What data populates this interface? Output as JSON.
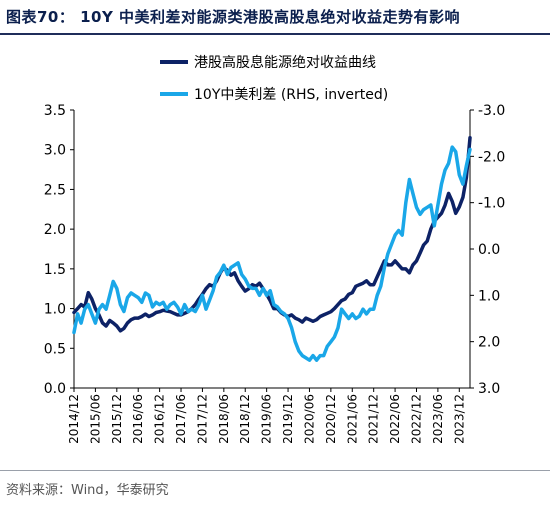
{
  "header": {
    "title": "图表70： 10Y 中美利差对能源类港股高股息绝对收益走势有影响"
  },
  "footer": {
    "source": "资料来源：Wind，华泰研究"
  },
  "colors": {
    "series1": "#0d2266",
    "series2": "#1aa7e8",
    "axis": "#000000"
  },
  "chart_data": {
    "type": "line",
    "title": "",
    "legend_position": "top-center",
    "grid": false,
    "x_axis": {
      "type": "date",
      "range": [
        "2014-12",
        "2024-03"
      ],
      "tick_labels": [
        "2014/12",
        "2015/06",
        "2015/12",
        "2016/06",
        "2016/12",
        "2017/06",
        "2017/12",
        "2018/06",
        "2018/12",
        "2019/06",
        "2019/12",
        "2020/06",
        "2020/12",
        "2021/06",
        "2021/12",
        "2022/06",
        "2022/12",
        "2023/06",
        "2023/12"
      ]
    },
    "y_left": {
      "ylim": [
        0,
        3.5
      ],
      "ticks": [
        "0.0",
        "0.5",
        "1.0",
        "1.5",
        "2.0",
        "2.5",
        "3.0",
        "3.5"
      ]
    },
    "y_right": {
      "label": "RHS, inverted",
      "inverted": true,
      "ylim": [
        -3.0,
        3.0
      ],
      "ticks": [
        "-3.0",
        "-2.0",
        "-1.0",
        "0.0",
        "1.0",
        "2.0",
        "3.0"
      ]
    },
    "series": [
      {
        "name": "港股高股息能源绝对收益曲线",
        "axis": "left",
        "color": "#0d2266",
        "points": [
          [
            "2014-12",
            0.95
          ],
          [
            "2015-01",
            1.0
          ],
          [
            "2015-02",
            1.05
          ],
          [
            "2015-03",
            1.02
          ],
          [
            "2015-04",
            1.2
          ],
          [
            "2015-05",
            1.12
          ],
          [
            "2015-06",
            1.0
          ],
          [
            "2015-07",
            0.92
          ],
          [
            "2015-08",
            0.82
          ],
          [
            "2015-09",
            0.78
          ],
          [
            "2015-10",
            0.85
          ],
          [
            "2015-11",
            0.82
          ],
          [
            "2015-12",
            0.78
          ],
          [
            "2016-01",
            0.72
          ],
          [
            "2016-02",
            0.75
          ],
          [
            "2016-03",
            0.82
          ],
          [
            "2016-04",
            0.86
          ],
          [
            "2016-05",
            0.88
          ],
          [
            "2016-06",
            0.88
          ],
          [
            "2016-07",
            0.9
          ],
          [
            "2016-08",
            0.93
          ],
          [
            "2016-09",
            0.9
          ],
          [
            "2016-10",
            0.92
          ],
          [
            "2016-11",
            0.95
          ],
          [
            "2016-12",
            0.96
          ],
          [
            "2017-01",
            0.98
          ],
          [
            "2017-02",
            0.97
          ],
          [
            "2017-03",
            0.96
          ],
          [
            "2017-04",
            0.94
          ],
          [
            "2017-05",
            0.92
          ],
          [
            "2017-06",
            0.92
          ],
          [
            "2017-07",
            0.94
          ],
          [
            "2017-08",
            0.96
          ],
          [
            "2017-09",
            1.0
          ],
          [
            "2017-10",
            1.05
          ],
          [
            "2017-11",
            1.12
          ],
          [
            "2017-12",
            1.18
          ],
          [
            "2018-01",
            1.25
          ],
          [
            "2018-02",
            1.3
          ],
          [
            "2018-03",
            1.28
          ],
          [
            "2018-04",
            1.35
          ],
          [
            "2018-05",
            1.45
          ],
          [
            "2018-06",
            1.52
          ],
          [
            "2018-07",
            1.48
          ],
          [
            "2018-08",
            1.42
          ],
          [
            "2018-09",
            1.45
          ],
          [
            "2018-10",
            1.35
          ],
          [
            "2018-11",
            1.28
          ],
          [
            "2018-12",
            1.22
          ],
          [
            "2019-01",
            1.25
          ],
          [
            "2019-02",
            1.3
          ],
          [
            "2019-03",
            1.28
          ],
          [
            "2019-04",
            1.32
          ],
          [
            "2019-05",
            1.25
          ],
          [
            "2019-06",
            1.18
          ],
          [
            "2019-07",
            1.1
          ],
          [
            "2019-08",
            1.0
          ],
          [
            "2019-09",
            1.0
          ],
          [
            "2019-10",
            0.95
          ],
          [
            "2019-11",
            0.92
          ],
          [
            "2019-12",
            0.9
          ],
          [
            "2020-01",
            0.92
          ],
          [
            "2020-02",
            0.88
          ],
          [
            "2020-03",
            0.86
          ],
          [
            "2020-04",
            0.83
          ],
          [
            "2020-05",
            0.88
          ],
          [
            "2020-06",
            0.86
          ],
          [
            "2020-07",
            0.84
          ],
          [
            "2020-08",
            0.86
          ],
          [
            "2020-09",
            0.9
          ],
          [
            "2020-10",
            0.92
          ],
          [
            "2020-11",
            0.94
          ],
          [
            "2020-12",
            0.96
          ],
          [
            "2021-01",
            1.0
          ],
          [
            "2021-02",
            1.05
          ],
          [
            "2021-03",
            1.1
          ],
          [
            "2021-04",
            1.12
          ],
          [
            "2021-05",
            1.18
          ],
          [
            "2021-06",
            1.2
          ],
          [
            "2021-07",
            1.28
          ],
          [
            "2021-08",
            1.3
          ],
          [
            "2021-09",
            1.32
          ],
          [
            "2021-10",
            1.35
          ],
          [
            "2021-11",
            1.3
          ],
          [
            "2021-12",
            1.3
          ],
          [
            "2022-01",
            1.4
          ],
          [
            "2022-02",
            1.5
          ],
          [
            "2022-03",
            1.6
          ],
          [
            "2022-04",
            1.55
          ],
          [
            "2022-05",
            1.55
          ],
          [
            "2022-06",
            1.6
          ],
          [
            "2022-07",
            1.55
          ],
          [
            "2022-08",
            1.5
          ],
          [
            "2022-09",
            1.5
          ],
          [
            "2022-10",
            1.45
          ],
          [
            "2022-11",
            1.55
          ],
          [
            "2022-12",
            1.6
          ],
          [
            "2023-01",
            1.7
          ],
          [
            "2023-02",
            1.8
          ],
          [
            "2023-03",
            1.85
          ],
          [
            "2023-04",
            2.0
          ],
          [
            "2023-05",
            2.1
          ],
          [
            "2023-06",
            2.15
          ],
          [
            "2023-07",
            2.2
          ],
          [
            "2023-08",
            2.3
          ],
          [
            "2023-09",
            2.45
          ],
          [
            "2023-10",
            2.35
          ],
          [
            "2023-11",
            2.2
          ],
          [
            "2023-12",
            2.28
          ],
          [
            "2024-01",
            2.4
          ],
          [
            "2024-02",
            2.65
          ],
          [
            "2024-03",
            3.15
          ]
        ]
      },
      {
        "name": "10Y中美利差 (RHS, inverted)",
        "axis": "right",
        "color": "#1aa7e8",
        "points": [
          [
            "2014-12",
            1.8
          ],
          [
            "2015-01",
            1.4
          ],
          [
            "2015-02",
            1.6
          ],
          [
            "2015-03",
            1.3
          ],
          [
            "2015-04",
            1.2
          ],
          [
            "2015-05",
            1.4
          ],
          [
            "2015-06",
            1.6
          ],
          [
            "2015-07",
            1.3
          ],
          [
            "2015-08",
            1.2
          ],
          [
            "2015-09",
            1.3
          ],
          [
            "2015-10",
            1.0
          ],
          [
            "2015-11",
            0.7
          ],
          [
            "2015-12",
            0.85
          ],
          [
            "2016-01",
            1.2
          ],
          [
            "2016-02",
            1.35
          ],
          [
            "2016-03",
            1.05
          ],
          [
            "2016-04",
            0.95
          ],
          [
            "2016-05",
            1.0
          ],
          [
            "2016-06",
            1.05
          ],
          [
            "2016-07",
            1.15
          ],
          [
            "2016-08",
            0.95
          ],
          [
            "2016-09",
            1.0
          ],
          [
            "2016-10",
            1.25
          ],
          [
            "2016-11",
            1.15
          ],
          [
            "2016-12",
            1.2
          ],
          [
            "2017-01",
            1.15
          ],
          [
            "2017-02",
            1.3
          ],
          [
            "2017-03",
            1.2
          ],
          [
            "2017-04",
            1.15
          ],
          [
            "2017-05",
            1.25
          ],
          [
            "2017-06",
            1.4
          ],
          [
            "2017-07",
            1.2
          ],
          [
            "2017-08",
            1.35
          ],
          [
            "2017-09",
            1.3
          ],
          [
            "2017-10",
            1.35
          ],
          [
            "2017-11",
            1.2
          ],
          [
            "2017-12",
            1.0
          ],
          [
            "2018-01",
            1.3
          ],
          [
            "2018-02",
            1.1
          ],
          [
            "2018-03",
            0.9
          ],
          [
            "2018-04",
            0.6
          ],
          [
            "2018-05",
            0.5
          ],
          [
            "2018-06",
            0.35
          ],
          [
            "2018-07",
            0.55
          ],
          [
            "2018-08",
            0.4
          ],
          [
            "2018-09",
            0.35
          ],
          [
            "2018-10",
            0.3
          ],
          [
            "2018-11",
            0.55
          ],
          [
            "2018-12",
            0.65
          ],
          [
            "2019-01",
            0.8
          ],
          [
            "2019-02",
            0.85
          ],
          [
            "2019-03",
            0.85
          ],
          [
            "2019-04",
            1.0
          ],
          [
            "2019-05",
            0.85
          ],
          [
            "2019-06",
            1.0
          ],
          [
            "2019-07",
            0.9
          ],
          [
            "2019-08",
            1.2
          ],
          [
            "2019-09",
            1.25
          ],
          [
            "2019-10",
            1.35
          ],
          [
            "2019-11",
            1.4
          ],
          [
            "2019-12",
            1.5
          ],
          [
            "2020-01",
            1.7
          ],
          [
            "2020-02",
            2.0
          ],
          [
            "2020-03",
            2.2
          ],
          [
            "2020-04",
            2.3
          ],
          [
            "2020-05",
            2.35
          ],
          [
            "2020-06",
            2.4
          ],
          [
            "2020-07",
            2.3
          ],
          [
            "2020-08",
            2.4
          ],
          [
            "2020-09",
            2.3
          ],
          [
            "2020-10",
            2.3
          ],
          [
            "2020-11",
            2.1
          ],
          [
            "2020-12",
            2.0
          ],
          [
            "2021-01",
            1.9
          ],
          [
            "2021-02",
            1.7
          ],
          [
            "2021-03",
            1.3
          ],
          [
            "2021-04",
            1.4
          ],
          [
            "2021-05",
            1.5
          ],
          [
            "2021-06",
            1.4
          ],
          [
            "2021-07",
            1.5
          ],
          [
            "2021-08",
            1.45
          ],
          [
            "2021-09",
            1.3
          ],
          [
            "2021-10",
            1.4
          ],
          [
            "2021-11",
            1.3
          ],
          [
            "2021-12",
            1.3
          ],
          [
            "2022-01",
            1.0
          ],
          [
            "2022-02",
            0.8
          ],
          [
            "2022-03",
            0.4
          ],
          [
            "2022-04",
            0.1
          ],
          [
            "2022-05",
            -0.1
          ],
          [
            "2022-06",
            -0.3
          ],
          [
            "2022-07",
            -0.4
          ],
          [
            "2022-08",
            -0.3
          ],
          [
            "2022-09",
            -1.0
          ],
          [
            "2022-10",
            -1.5
          ],
          [
            "2022-11",
            -1.2
          ],
          [
            "2022-12",
            -0.9
          ],
          [
            "2023-01",
            -0.75
          ],
          [
            "2023-02",
            -0.85
          ],
          [
            "2023-03",
            -0.9
          ],
          [
            "2023-04",
            -0.95
          ],
          [
            "2023-05",
            -0.5
          ],
          [
            "2023-06",
            -0.95
          ],
          [
            "2023-07",
            -1.4
          ],
          [
            "2023-08",
            -1.7
          ],
          [
            "2023-09",
            -1.85
          ],
          [
            "2023-10",
            -2.2
          ],
          [
            "2023-11",
            -2.1
          ],
          [
            "2023-12",
            -1.6
          ],
          [
            "2024-01",
            -1.4
          ],
          [
            "2024-02",
            -1.8
          ],
          [
            "2024-03",
            -2.15
          ]
        ]
      }
    ]
  }
}
